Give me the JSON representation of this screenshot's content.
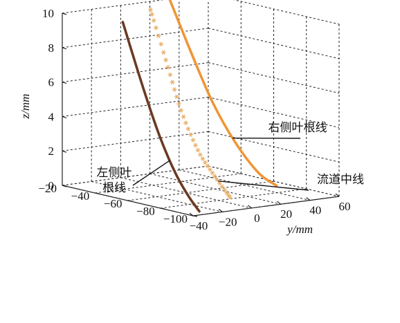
{
  "chart_data": {
    "type": "line3d",
    "title": "",
    "axes": {
      "x": {
        "label": "",
        "ticks": [
          "−20",
          "−40",
          "−60",
          "−80",
          "−100"
        ]
      },
      "y": {
        "label": "y/mm",
        "ticks": [
          "−40",
          "−20",
          "0",
          "20",
          "40",
          "60"
        ]
      },
      "z": {
        "label": "z/mm",
        "ticks": [
          "0",
          "2",
          "4",
          "6",
          "8",
          "10"
        ]
      }
    },
    "grid": true,
    "series": [
      {
        "name": "左侧叶根线",
        "style": "line",
        "color": "#6b3a22",
        "points": [
          {
            "x": -57,
            "y": -40,
            "z": 10.3
          },
          {
            "x": -63,
            "y": -38,
            "z": 8.0
          },
          {
            "x": -69,
            "y": -36,
            "z": 5.8
          },
          {
            "x": -75,
            "y": -34,
            "z": 3.8
          },
          {
            "x": -82,
            "y": -32,
            "z": 2.0
          },
          {
            "x": -88,
            "y": -30,
            "z": 0.8
          },
          {
            "x": -94,
            "y": -29,
            "z": 0.0
          }
        ]
      },
      {
        "name": "流道中线",
        "style": "markers",
        "marker": "asterisk",
        "color": "#e8b06a",
        "points": [
          {
            "x": -57,
            "y": -21,
            "z": 10.8
          },
          {
            "x": -61,
            "y": -15,
            "z": 7.9
          },
          {
            "x": -65,
            "y": -9,
            "z": 5.0
          },
          {
            "x": -69,
            "y": -2,
            "z": 2.7
          },
          {
            "x": -73,
            "y": 5,
            "z": 1.2
          },
          {
            "x": -77,
            "y": 11,
            "z": 0.0
          }
        ]
      },
      {
        "name": "右侧叶根线",
        "style": "line",
        "color": "#ee9636",
        "points": [
          {
            "x": -57,
            "y": -9,
            "z": 11.5
          },
          {
            "x": -59,
            "y": 4,
            "z": 8.2
          },
          {
            "x": -61,
            "y": 17,
            "z": 5.1
          },
          {
            "x": -63,
            "y": 30,
            "z": 2.7
          },
          {
            "x": -66,
            "y": 43,
            "z": 0.8
          },
          {
            "x": -68,
            "y": 53,
            "z": 0.0
          }
        ]
      }
    ],
    "annotations": [
      {
        "lines": [
          "右侧叶根线"
        ],
        "target": "右侧叶根线"
      },
      {
        "lines": [
          "流道中线"
        ],
        "target": "流道中线"
      },
      {
        "lines": [
          "左侧叶",
          "根线"
        ],
        "target": "左侧叶根线"
      }
    ]
  }
}
